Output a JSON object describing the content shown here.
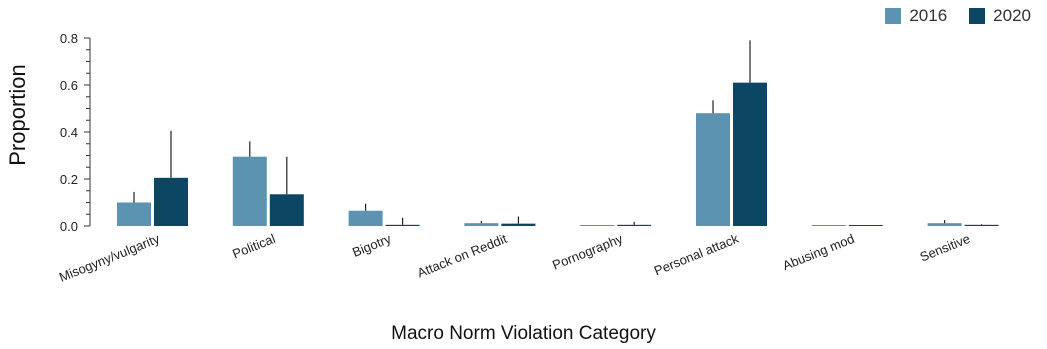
{
  "chart_data": {
    "type": "bar",
    "categories": [
      "Misogyny/vulgarity",
      "Political",
      "Bigotry",
      "Attack on Reddit",
      "Pornography",
      "Personal attack",
      "Abusing mod",
      "Sensitive"
    ],
    "series": [
      {
        "name": "2016",
        "color": "#5b93b0",
        "values": [
          0.1,
          0.295,
          0.065,
          0.012,
          0.002,
          0.48,
          0.002,
          0.012
        ],
        "error_upper": [
          0.145,
          0.36,
          0.095,
          0.022,
          0.004,
          0.535,
          0.004,
          0.025
        ]
      },
      {
        "name": "2020",
        "color": "#0b4763",
        "values": [
          0.205,
          0.135,
          0.005,
          0.01,
          0.005,
          0.61,
          0.002,
          0.005
        ],
        "error_upper": [
          0.405,
          0.295,
          0.035,
          0.04,
          0.018,
          0.79,
          0.004,
          0.008
        ]
      }
    ],
    "xlabel": "Macro Norm Violation Category",
    "ylabel": "Proportion",
    "ylim": [
      0,
      0.8
    ],
    "yticks": [
      "0.0",
      "0.2",
      "0.4",
      "0.6",
      "0.8"
    ],
    "grid": false,
    "legend": "top-right"
  }
}
